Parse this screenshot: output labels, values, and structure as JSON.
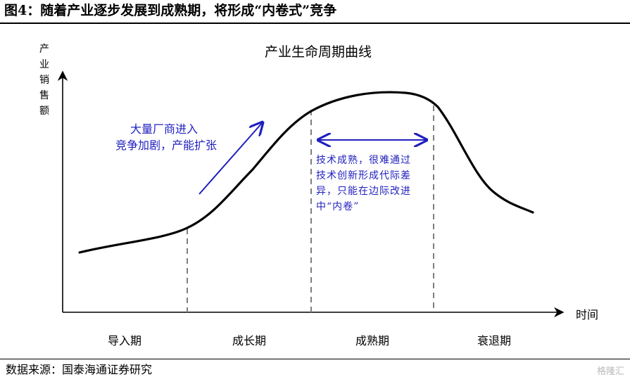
{
  "figure": {
    "title": "图4：随着产业逐步发展到成熟期，将形成“内卷式”竞争",
    "source": "数据来源：国泰海通证券研究",
    "watermark": "格隆汇"
  },
  "diagram": {
    "chart_title": "产业生命周期曲线",
    "y_axis_label": [
      "产",
      "业",
      "销",
      "售",
      "额"
    ],
    "x_axis_label": "时间",
    "phases": [
      "导入期",
      "成长期",
      "成熟期",
      "衰退期"
    ],
    "growth_annotation": [
      "大量厂商进入",
      "竞争加剧，产能扩张"
    ],
    "maturity_annotation": [
      "技术成熟，很难通过",
      "技术创新形成代际差",
      "异，只能在边际改进",
      "中“内卷”"
    ],
    "colors": {
      "curve": "#000000",
      "annotation": "#1f1fbf",
      "divider": "#7f7f7f"
    }
  }
}
